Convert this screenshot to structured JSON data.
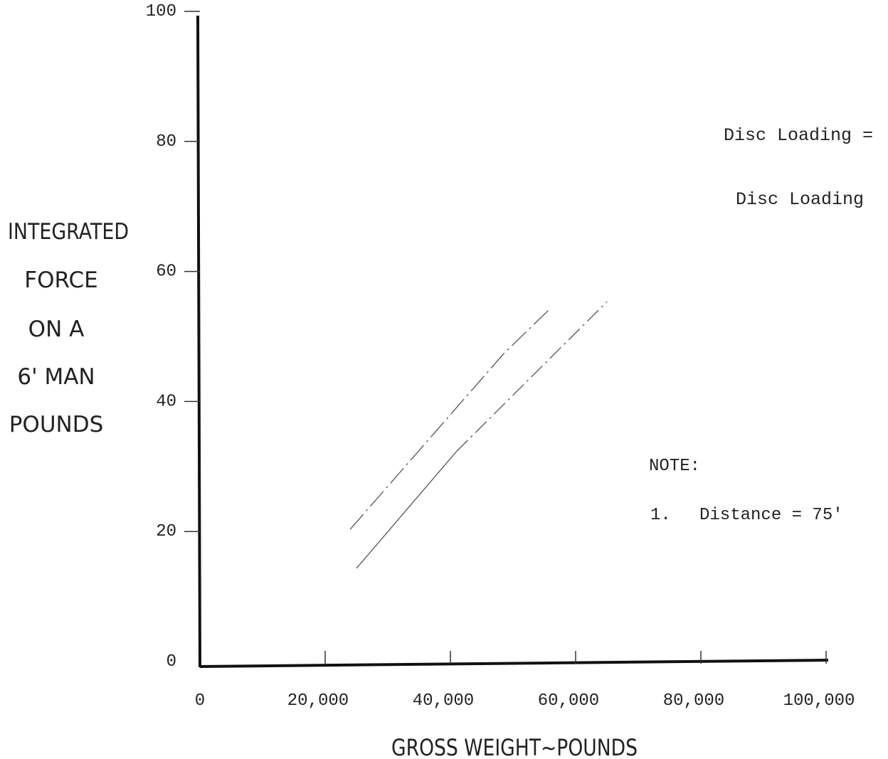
{
  "chart_data": {
    "type": "line",
    "xlabel": "GROSS WEIGHT~POUNDS",
    "ylabel_lines": [
      "INTEGRATED",
      "FORCE",
      "ON A",
      "6' MAN",
      "POUNDS"
    ],
    "xlim": [
      0,
      100000
    ],
    "ylim": [
      0,
      100
    ],
    "x_ticks": [
      0,
      20000,
      40000,
      60000,
      80000,
      100000
    ],
    "x_tick_labels": [
      "0",
      "20,000",
      "40,000",
      "60,000",
      "80,000",
      "100,000"
    ],
    "y_ticks": [
      0,
      20,
      40,
      60,
      80,
      100
    ],
    "y_tick_labels": [
      "0",
      "20",
      "40",
      "60",
      "80",
      "100"
    ],
    "grid": false,
    "legend_labels": [
      "Disc Loading =",
      "Disc Loading"
    ],
    "series": [
      {
        "style": "dash-dot",
        "x": [
          24000,
          48500,
          56000
        ],
        "y": [
          21,
          48,
          55
        ],
        "color": "#555555"
      },
      {
        "style": "solid-then-dash-dot",
        "x": [
          25000,
          41000,
          65000
        ],
        "y": [
          15,
          33,
          56
        ],
        "color": "#555555"
      }
    ],
    "note": {
      "heading": "NOTE:",
      "item_number": "1.",
      "item_text": "Distance = 75'"
    }
  }
}
